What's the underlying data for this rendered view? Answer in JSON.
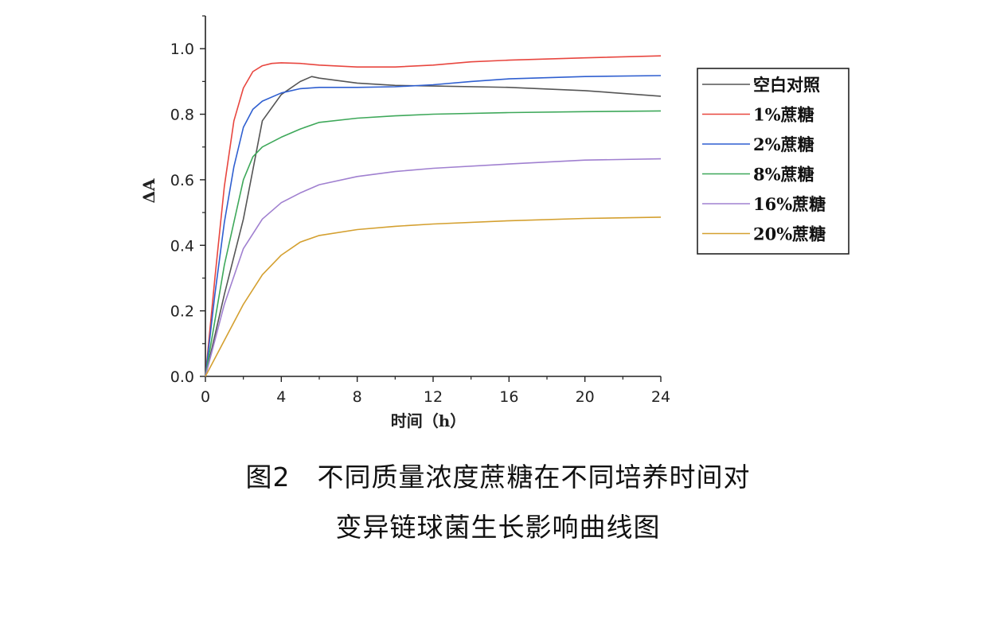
{
  "caption": {
    "line1": "图2　不同质量浓度蔗糖在不同培养时间对",
    "line2": "变异链球菌生长影响曲线图"
  },
  "chart_data": {
    "type": "line",
    "title": "",
    "xlabel": "时间（h）",
    "ylabel": "ΔA",
    "xlim": [
      0,
      24
    ],
    "ylim": [
      0,
      1.1
    ],
    "xticks": [
      0,
      4,
      8,
      12,
      16,
      20,
      24
    ],
    "yticks": [
      0.0,
      0.2,
      0.4,
      0.6,
      0.8,
      1.0
    ],
    "ytick_labels": [
      "0.0",
      "0.2",
      "0.4",
      "0.6",
      "0.8",
      "1.0"
    ],
    "grid": false,
    "legend_position": "right",
    "series": [
      {
        "name": "空白对照",
        "color": "#555555",
        "x": [
          0,
          1,
          2,
          3,
          4,
          5,
          5.6,
          6,
          8,
          10,
          12,
          16,
          20,
          24
        ],
        "y": [
          0,
          0.25,
          0.48,
          0.78,
          0.86,
          0.9,
          0.915,
          0.91,
          0.895,
          0.888,
          0.886,
          0.882,
          0.872,
          0.855
        ]
      },
      {
        "name": "1%蔗糖",
        "color": "#e8463f",
        "x": [
          0,
          0.5,
          1,
          1.5,
          2,
          2.5,
          3,
          3.5,
          4,
          5,
          6,
          8,
          10,
          12,
          14,
          16,
          20,
          24
        ],
        "y": [
          0,
          0.3,
          0.58,
          0.78,
          0.88,
          0.93,
          0.948,
          0.955,
          0.957,
          0.955,
          0.95,
          0.944,
          0.944,
          0.95,
          0.96,
          0.965,
          0.972,
          0.978
        ]
      },
      {
        "name": "2%蔗糖",
        "color": "#2f5fd0",
        "x": [
          0,
          0.5,
          1,
          1.5,
          2,
          2.5,
          3,
          4,
          5,
          6,
          8,
          10,
          12,
          14,
          16,
          20,
          24
        ],
        "y": [
          0,
          0.25,
          0.47,
          0.64,
          0.76,
          0.815,
          0.84,
          0.865,
          0.878,
          0.882,
          0.882,
          0.884,
          0.89,
          0.9,
          0.908,
          0.915,
          0.918
        ]
      },
      {
        "name": "8%蔗糖",
        "color": "#3ea85a",
        "x": [
          0,
          1,
          2,
          2.5,
          3,
          4,
          5,
          6,
          8,
          10,
          12,
          16,
          20,
          24
        ],
        "y": [
          0,
          0.34,
          0.6,
          0.67,
          0.7,
          0.73,
          0.755,
          0.775,
          0.788,
          0.795,
          0.8,
          0.805,
          0.808,
          0.81
        ]
      },
      {
        "name": "16%蔗糖",
        "color": "#a080d0",
        "x": [
          0,
          1,
          2,
          3,
          4,
          5,
          6,
          8,
          10,
          12,
          16,
          20,
          24
        ],
        "y": [
          0,
          0.22,
          0.39,
          0.48,
          0.53,
          0.56,
          0.585,
          0.61,
          0.625,
          0.635,
          0.648,
          0.66,
          0.664
        ]
      },
      {
        "name": "20%蔗糖",
        "color": "#d4a030",
        "x": [
          0,
          1,
          2,
          3,
          4,
          5,
          6,
          8,
          10,
          12,
          16,
          20,
          24
        ],
        "y": [
          0,
          0.11,
          0.22,
          0.31,
          0.37,
          0.41,
          0.43,
          0.448,
          0.458,
          0.465,
          0.475,
          0.482,
          0.486
        ]
      }
    ]
  }
}
